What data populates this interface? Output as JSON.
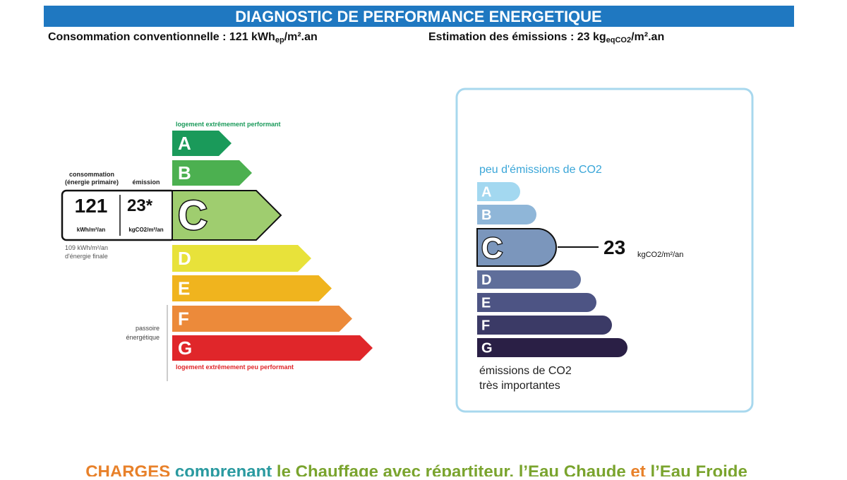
{
  "header": {
    "title": "DIAGNOSTIC DE PERFORMANCE ENERGETIQUE",
    "consumption": {
      "text": "Consommation conventionnelle : 121 kWh",
      "sub": "ep",
      "unit": "/m².an"
    },
    "emissions": {
      "text": "Estimation des émissions : 23 kg",
      "sub": "eqCO2",
      "unit": "/m².an"
    }
  },
  "energy_label": {
    "top_note": "logement extrêmement performant",
    "classes": [
      "A",
      "B",
      "C",
      "D",
      "E",
      "F",
      "G"
    ],
    "consumption_header": [
      "consommation",
      "(énergie primaire)"
    ],
    "emission_header": "émission",
    "consumption_value": "121",
    "consumption_unit": "kWh/m²/an",
    "emission_value": "23*",
    "emission_unit": "kgCO2/m²/an",
    "final_energy": [
      "109 kWh/m²/an",
      "d'énergie finale"
    ],
    "passoire": [
      "passoire",
      "énergétique"
    ],
    "bottom_note": "logement extrêmement peu performant"
  },
  "climate_label": {
    "top_note": "peu d'émissions de CO2",
    "classes": [
      "A",
      "B",
      "C",
      "D",
      "E",
      "F",
      "G"
    ],
    "value": "23",
    "unit": "kgCO2/m²/an",
    "bottom_note": [
      "émissions de CO2",
      "très importantes"
    ]
  },
  "footer": {
    "parts": [
      "CHARGES",
      "comprenant",
      "le Chauffage avec répartiteur, l’Eau Chaude",
      "et",
      "l’Eau Froide"
    ]
  }
}
